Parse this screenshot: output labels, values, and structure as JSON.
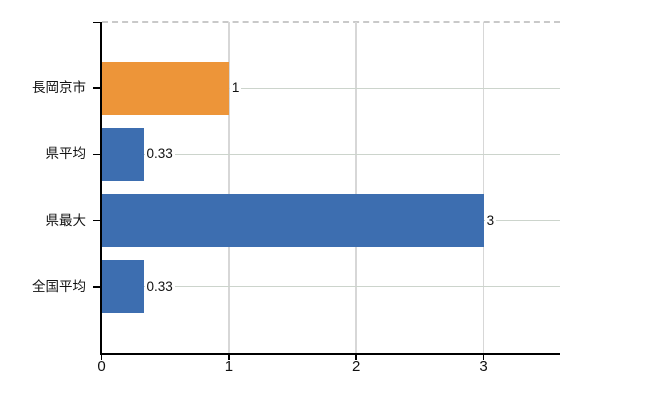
{
  "chart_data": {
    "type": "bar",
    "orientation": "horizontal",
    "title": "",
    "categories": [
      "長岡京市",
      "県平均",
      "県最大",
      "全国平均"
    ],
    "values": [
      1,
      0.33,
      3,
      0.33
    ],
    "value_labels": [
      "1",
      "0.33",
      "3",
      "0.33"
    ],
    "series_colors": [
      "#ED9539",
      "#3D6EB0",
      "#3D6EB0",
      "#3D6EB0"
    ],
    "xlim": [
      0,
      3.6
    ],
    "x_ticks": [
      0,
      1,
      2,
      3
    ],
    "x_tick_labels": [
      "0",
      "1",
      "2",
      "3"
    ],
    "grid": true,
    "legend": false,
    "value_labels_position": "outside-end"
  },
  "colors": {
    "bar_orange": "#ED9539",
    "bar_blue": "#3D6EB0",
    "grid_vertical": "#d7d7d7",
    "grid_horizontal": "#ccd4cc",
    "plot_top_border": "#c9c9c9",
    "axis": "#000000",
    "text": "#111111",
    "background": "#ffffff"
  }
}
